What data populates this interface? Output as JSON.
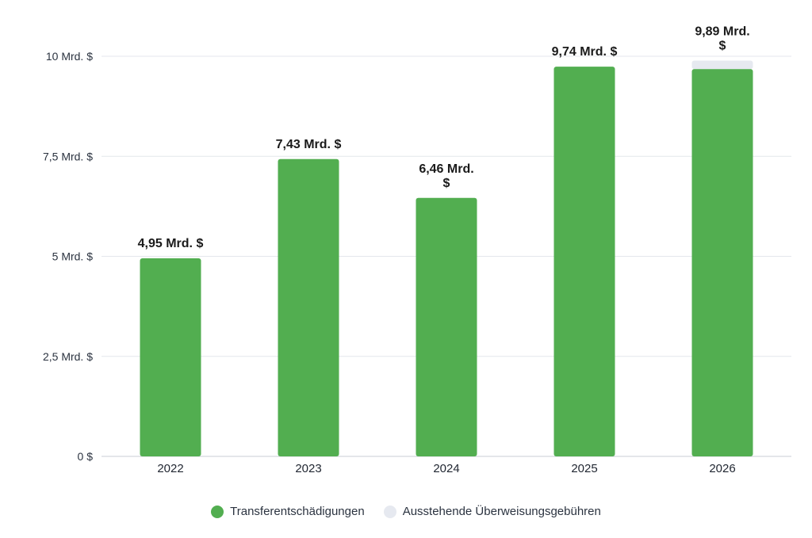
{
  "chart_data": {
    "type": "bar",
    "stacked": true,
    "categories": [
      "2022",
      "2023",
      "2024",
      "2025",
      "2026"
    ],
    "series": [
      {
        "name": "Transferentschädigungen",
        "color": "#52ae50",
        "values": [
          4.95,
          7.43,
          6.46,
          9.74,
          9.68
        ]
      },
      {
        "name": "Ausstehende Überweisungsgebühren",
        "color": "#e6e9f0",
        "values": [
          0,
          0,
          0,
          0,
          0.21
        ]
      }
    ],
    "totals": [
      4.95,
      7.43,
      6.46,
      9.74,
      9.89
    ],
    "data_labels": [
      [
        "4,95 Mrd. $"
      ],
      [
        "7,43 Mrd. $"
      ],
      [
        "6,46 Mrd.",
        "$"
      ],
      [
        "9,74 Mrd. $"
      ],
      [
        "9,89 Mrd.",
        "$"
      ]
    ],
    "y_ticks": [
      0,
      2.5,
      5,
      7.5,
      10
    ],
    "y_tick_labels": [
      "0 $",
      "2,5 Mrd. $",
      "5 Mrd. $",
      "7,5 Mrd. $",
      "10 Mrd. $"
    ],
    "ylim": [
      0,
      10
    ],
    "grid": true,
    "legend_position": "bottom-center"
  }
}
